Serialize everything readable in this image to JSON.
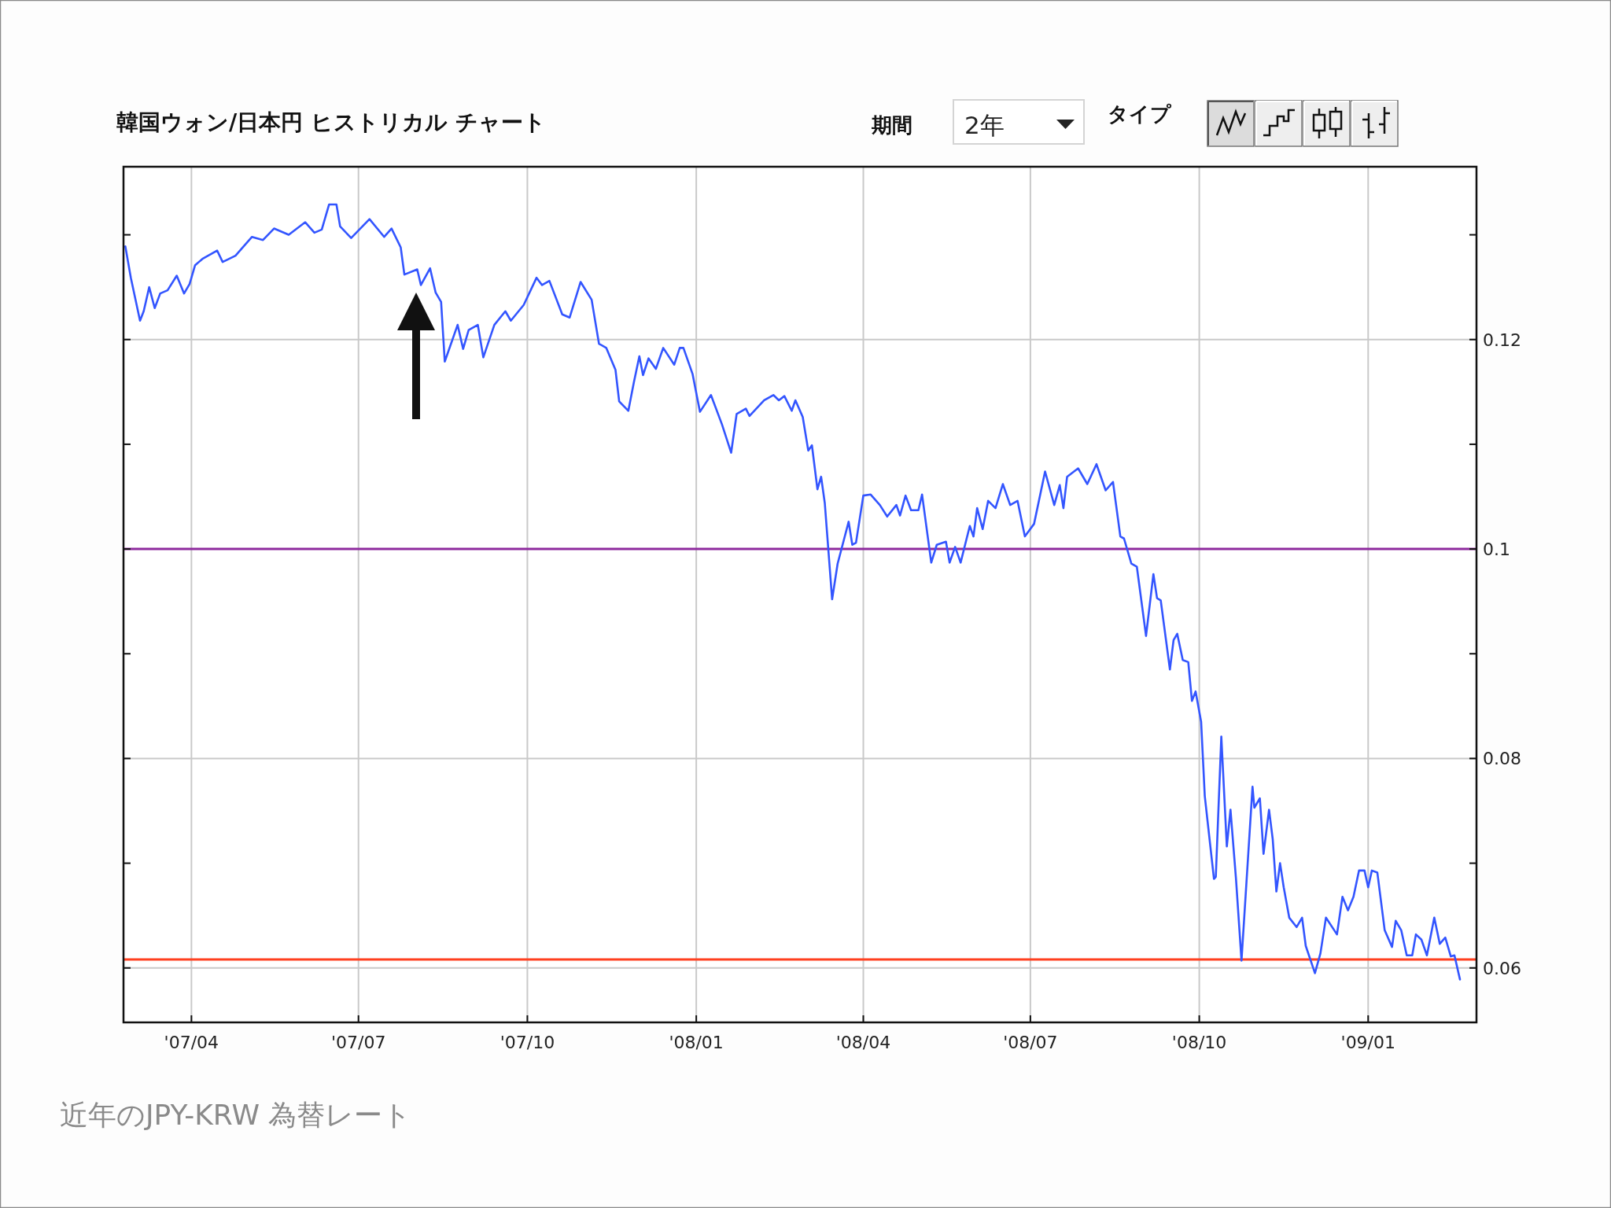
{
  "chart_data": {
    "type": "line",
    "title": "韓国ウォン/日本円 ヒストリカル チャート",
    "annotations": [
      "期間",
      "2年",
      "タイプ",
      "近年のJPY-KRW 為替レート"
    ],
    "color": "#3355ff",
    "x": [
      "2007-02-24",
      "2007-02-27",
      "2007-03-04",
      "2007-03-06",
      "2007-03-09",
      "2007-03-12",
      "2007-03-15",
      "2007-03-19",
      "2007-03-24",
      "2007-03-28",
      "2007-03-31",
      "2007-04-03",
      "2007-04-07",
      "2007-04-15",
      "2007-04-18",
      "2007-04-25",
      "2007-04-28",
      "2007-05-04",
      "2007-05-10",
      "2007-05-16",
      "2007-05-24",
      "2007-06-02",
      "2007-06-07",
      "2007-06-11",
      "2007-06-15",
      "2007-06-19",
      "2007-06-21",
      "2007-06-27",
      "2007-07-02",
      "2007-07-07",
      "2007-07-15",
      "2007-07-19",
      "2007-07-24",
      "2007-07-26",
      "2007-08-02",
      "2007-08-04",
      "2007-08-09",
      "2007-08-12",
      "2007-08-15",
      "2007-08-17",
      "2007-08-20",
      "2007-08-24",
      "2007-08-27",
      "2007-08-30",
      "2007-09-04",
      "2007-09-07",
      "2007-09-13",
      "2007-09-19",
      "2007-09-22",
      "2007-09-29",
      "2007-10-06",
      "2007-10-09",
      "2007-10-13",
      "2007-10-20",
      "2007-10-24",
      "2007-10-30",
      "2007-11-05",
      "2007-11-09",
      "2007-11-13",
      "2007-11-18",
      "2007-11-20",
      "2007-11-25",
      "2007-11-28",
      "2007-12-01",
      "2007-12-03",
      "2007-12-06",
      "2007-12-10",
      "2007-12-14",
      "2007-12-20",
      "2007-12-23",
      "2007-12-25",
      "2007-12-30",
      "2008-01-03",
      "2008-01-09",
      "2008-01-15",
      "2008-01-20",
      "2008-01-23",
      "2008-01-28",
      "2008-01-30",
      "2008-02-07",
      "2008-02-12",
      "2008-02-15",
      "2008-02-18",
      "2008-02-22",
      "2008-02-24",
      "2008-02-28",
      "2008-03-02",
      "2008-03-04",
      "2008-03-07",
      "2008-03-09",
      "2008-03-11",
      "2008-03-15",
      "2008-03-18",
      "2008-03-24",
      "2008-03-26",
      "2008-03-28",
      "2008-04-01",
      "2008-04-05",
      "2008-04-10",
      "2008-04-14",
      "2008-04-19",
      "2008-04-21",
      "2008-04-24",
      "2008-04-27",
      "2008-05-01",
      "2008-05-03",
      "2008-05-08",
      "2008-05-11",
      "2008-05-16",
      "2008-05-18",
      "2008-05-21",
      "2008-05-24",
      "2008-05-29",
      "2008-05-31",
      "2008-06-02",
      "2008-06-05",
      "2008-06-08",
      "2008-06-12",
      "2008-06-16",
      "2008-06-20",
      "2008-06-24",
      "2008-06-28",
      "2008-07-03",
      "2008-07-09",
      "2008-07-14",
      "2008-07-17",
      "2008-07-19",
      "2008-07-21",
      "2008-07-27",
      "2008-08-01",
      "2008-08-06",
      "2008-08-11",
      "2008-08-15",
      "2008-08-19",
      "2008-08-21",
      "2008-08-25",
      "2008-08-28",
      "2008-09-02",
      "2008-09-06",
      "2008-09-08",
      "2008-09-10",
      "2008-09-15",
      "2008-09-17",
      "2008-09-19",
      "2008-09-22",
      "2008-09-25",
      "2008-09-27",
      "2008-09-29",
      "2008-10-02",
      "2008-10-04",
      "2008-10-09",
      "2008-10-10",
      "2008-10-13",
      "2008-10-16",
      "2008-10-18",
      "2008-10-21",
      "2008-10-24",
      "2008-10-30",
      "2008-10-31",
      "2008-11-03",
      "2008-11-05",
      "2008-11-08",
      "2008-11-10",
      "2008-11-12",
      "2008-11-14",
      "2008-11-16",
      "2008-11-19",
      "2008-11-23",
      "2008-11-26",
      "2008-11-28",
      "2008-12-03",
      "2008-12-06",
      "2008-12-09",
      "2008-12-15",
      "2008-12-18",
      "2008-12-21",
      "2008-12-24",
      "2008-12-27",
      "2008-12-30",
      "2009-01-01",
      "2009-01-03",
      "2009-01-06",
      "2009-01-10",
      "2009-01-14",
      "2009-01-16",
      "2009-01-19",
      "2009-01-22",
      "2009-01-25",
      "2009-01-27",
      "2009-01-30",
      "2009-02-02",
      "2009-02-06",
      "2009-02-09",
      "2009-02-12",
      "2009-02-15",
      "2009-02-17",
      "2009-02-20"
    ],
    "values": [
      0.1289,
      0.1259,
      0.1218,
      0.1227,
      0.125,
      0.123,
      0.1244,
      0.1247,
      0.1261,
      0.1244,
      0.1253,
      0.1271,
      0.1277,
      0.1285,
      0.1274,
      0.128,
      0.1286,
      0.1298,
      0.1295,
      0.1306,
      0.13,
      0.1312,
      0.1302,
      0.1305,
      0.1329,
      0.1329,
      0.1308,
      0.1297,
      0.1306,
      0.1315,
      0.1298,
      0.1306,
      0.1288,
      0.1262,
      0.1267,
      0.1252,
      0.1268,
      0.1245,
      0.1236,
      0.1179,
      0.1194,
      0.1214,
      0.1191,
      0.1209,
      0.1214,
      0.1183,
      0.1214,
      0.1227,
      0.1218,
      0.1233,
      0.1259,
      0.1252,
      0.1256,
      0.1224,
      0.1221,
      0.1255,
      0.1238,
      0.1196,
      0.1192,
      0.1171,
      0.1141,
      0.1132,
      0.1159,
      0.1184,
      0.1166,
      0.1182,
      0.1172,
      0.1192,
      0.1176,
      0.1192,
      0.1192,
      0.1167,
      0.1131,
      0.1147,
      0.1119,
      0.1092,
      0.1129,
      0.1134,
      0.1127,
      0.1142,
      0.1147,
      0.1142,
      0.1146,
      0.1132,
      0.1142,
      0.1126,
      0.1094,
      0.1099,
      0.1057,
      0.1069,
      0.1044,
      0.0952,
      0.0986,
      0.1026,
      0.1004,
      0.1006,
      0.1051,
      0.1052,
      0.1042,
      0.1031,
      0.1042,
      0.1032,
      0.1051,
      0.1037,
      0.1037,
      0.1052,
      0.0987,
      0.1004,
      0.1007,
      0.0987,
      0.1002,
      0.0987,
      0.1022,
      0.1012,
      0.1039,
      0.1019,
      0.1046,
      0.1039,
      0.1062,
      0.1042,
      0.1046,
      0.1012,
      0.1024,
      0.1074,
      0.1042,
      0.1061,
      0.1039,
      0.1069,
      0.1077,
      0.1062,
      0.1081,
      0.1056,
      0.1064,
      0.1012,
      0.101,
      0.0986,
      0.0983,
      0.0917,
      0.0976,
      0.0953,
      0.0951,
      0.0885,
      0.0913,
      0.0919,
      0.0894,
      0.0892,
      0.0855,
      0.0864,
      0.0835,
      0.0764,
      0.0685,
      0.0687,
      0.0821,
      0.0716,
      0.0751,
      0.0685,
      0.0607,
      0.0773,
      0.0753,
      0.0762,
      0.0709,
      0.0751,
      0.0723,
      0.0673,
      0.07,
      0.0677,
      0.0648,
      0.0639,
      0.0648,
      0.0621,
      0.0595,
      0.0614,
      0.0648,
      0.0632,
      0.0668,
      0.0655,
      0.0668,
      0.0693,
      0.0693,
      0.0677,
      0.0693,
      0.0691,
      0.0636,
      0.062,
      0.0645,
      0.0636,
      0.0612,
      0.0612,
      0.0632,
      0.0627,
      0.0612,
      0.0648,
      0.0623,
      0.0629,
      0.0611,
      0.0612,
      0.0589
    ],
    "xlim": [
      "2007-02-23",
      "2009-03-01"
    ],
    "xticks": [
      {
        "value": "2007-04-01",
        "label": "'07/04"
      },
      {
        "value": "2007-07-01",
        "label": "'07/07"
      },
      {
        "value": "2007-10-01",
        "label": "'07/10"
      },
      {
        "value": "2008-01-01",
        "label": "'08/01"
      },
      {
        "value": "2008-04-01",
        "label": "'08/04"
      },
      {
        "value": "2008-07-01",
        "label": "'08/07"
      },
      {
        "value": "2008-10-01",
        "label": "'08/10"
      },
      {
        "value": "2009-01-01",
        "label": "'09/01"
      }
    ],
    "ylim": [
      0.0548,
      0.1365
    ],
    "yticks": [
      0.06,
      {
        "value": 0.07,
        "label": null
      },
      0.08,
      {
        "value": 0.09,
        "label": null
      },
      0.1,
      {
        "value": 0.11,
        "label": null
      },
      0.12,
      {
        "value": 0.13,
        "label": null
      }
    ],
    "grid": true,
    "ref_lines": [
      {
        "axis": "y",
        "value": 0.1,
        "color": "#8e2a9e"
      },
      {
        "axis": "y",
        "value": 0.0608,
        "color": "#ff4020"
      }
    ]
  }
}
